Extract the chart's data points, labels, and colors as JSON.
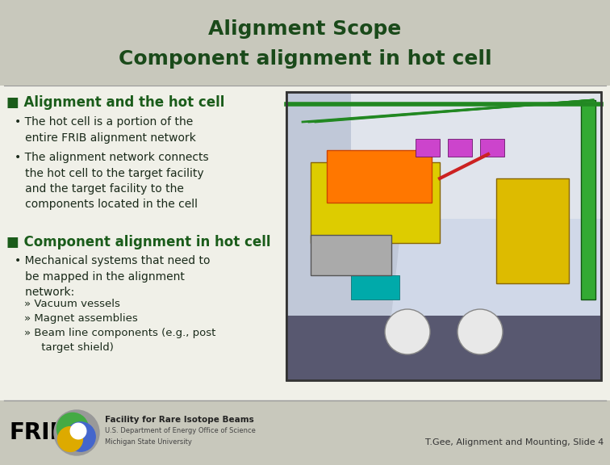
{
  "bg_color": "#deded4",
  "title_line1": "Alignment Scope",
  "title_line2": "Component alignment in hot cell",
  "title_color": "#1a4a1a",
  "title_fontsize": 18,
  "section1_header": "■ Alignment and the hot cell",
  "section1_bullet1": "• The hot cell is a portion of the\n   entire FRIB alignment network",
  "section1_bullet2": "• The alignment network connects\n   the hot cell to the target facility\n   and the target facility to the\n   components located in the cell",
  "section2_header": "■ Component alignment in hot cell",
  "section2_bullet1": "• Mechanical systems that need to\n   be mapped in the alignment\n   network:",
  "section2_sub1": "» Vacuum vessels",
  "section2_sub2": "» Magnet assemblies",
  "section2_sub3": "» Beam line components (e.g., post\n     target shield)",
  "header_color": "#1a5c1a",
  "header_fontsize": 12,
  "bullet_color": "#1a2a1a",
  "bullet_fontsize": 10,
  "sub_fontsize": 9.5,
  "footer_text": "T.Gee, Alignment and Mounting, Slide 4",
  "footer_color": "#333333",
  "footer_fontsize": 8,
  "divider_color": "#999999",
  "footer_bg": "#c8c8bc",
  "title_bg": "#c8c8bc"
}
